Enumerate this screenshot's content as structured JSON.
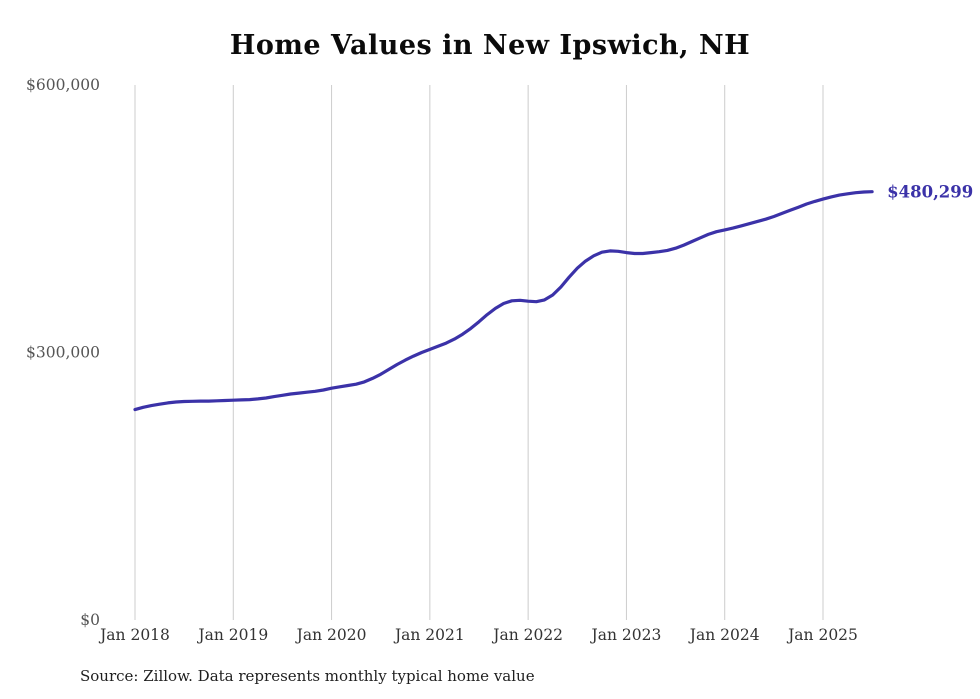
{
  "title": "Home Values in New Ipswich, NH",
  "source_note": "Source: Zillow. Data represents monthly typical home value",
  "end_label": "$480,299",
  "colors": {
    "line": "#3b32a8",
    "grid": "#cccccc",
    "x_tick_text": "#333333",
    "y_tick_text": "#555555",
    "title_text": "#0b0b0b",
    "source_text": "#1f1f1f"
  },
  "chart_data": {
    "type": "line",
    "title": "Home Values in New Ipswich, NH",
    "x_start": "Jan 2018",
    "x_frequency": "monthly",
    "x_tick_labels": [
      "Jan 2018",
      "Jan 2019",
      "Jan 2020",
      "Jan 2021",
      "Jan 2022",
      "Jan 2023",
      "Jan 2024",
      "Jan 2025"
    ],
    "y_ticks": [
      {
        "label": "$0",
        "value": 0
      },
      {
        "label": "$300,000",
        "value": 300000
      },
      {
        "label": "$600,000",
        "value": 600000
      }
    ],
    "ylim": [
      0,
      600000
    ],
    "legend": "none",
    "grid": "vertical-only",
    "end_label": "$480,299",
    "final_value": 480299,
    "series": [
      {
        "name": "Typical home value",
        "values": [
          236000,
          238500,
          240500,
          242000,
          243500,
          244500,
          245000,
          245300,
          245500,
          245500,
          245800,
          246200,
          246500,
          246800,
          247200,
          248000,
          249000,
          250500,
          252000,
          253500,
          254500,
          255500,
          256500,
          258000,
          260000,
          261500,
          263000,
          264500,
          267000,
          271000,
          275500,
          281000,
          286500,
          291500,
          296000,
          300000,
          303500,
          307000,
          310500,
          315000,
          320500,
          327000,
          334500,
          342500,
          349500,
          355000,
          358000,
          358500,
          357500,
          357000,
          359000,
          364500,
          373500,
          384500,
          394500,
          402500,
          408500,
          412500,
          414000,
          413500,
          412000,
          411000,
          411000,
          412000,
          413000,
          414500,
          417000,
          420500,
          424500,
          428500,
          432500,
          435500,
          437500,
          439500,
          442000,
          444500,
          447000,
          449500,
          452500,
          456000,
          459500,
          463000,
          466500,
          469500,
          472000,
          474500,
          476500,
          478000,
          479200,
          480000,
          480299
        ]
      }
    ]
  }
}
